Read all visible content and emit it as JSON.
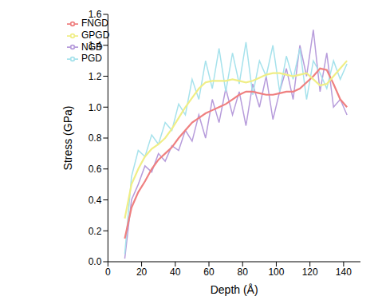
{
  "chart_data": {
    "type": "line",
    "x_label": "Depth (Å)",
    "y_label": "Stress (GPa)",
    "xlim": [
      0,
      150
    ],
    "xticks": [
      0,
      20,
      40,
      60,
      80,
      100,
      120,
      140
    ],
    "ylim": [
      0,
      1.6
    ],
    "yticks": [
      {
        "value": 0,
        "label": "0.0"
      },
      {
        "value": 0.2,
        "label": "0.2"
      },
      {
        "value": 0.4,
        "label": "0.4"
      },
      {
        "value": 0.6,
        "label": "0.6"
      },
      {
        "value": 0.8,
        "label": "0.8"
      },
      {
        "value": 1,
        "label": "1.0"
      },
      {
        "value": 1.2,
        "label": "1.2"
      },
      {
        "value": 1.4,
        "label": "1.4"
      },
      {
        "value": 1.6,
        "label": "1.6"
      }
    ],
    "legend": "upper left",
    "grid": false,
    "x": [
      10,
      14,
      18,
      22,
      26,
      30,
      34,
      38,
      42,
      46,
      50,
      54,
      58,
      62,
      66,
      70,
      74,
      78,
      82,
      86,
      90,
      94,
      98,
      102,
      106,
      110,
      114,
      118,
      122,
      126,
      130,
      134,
      138,
      142
    ],
    "series": [
      {
        "name": "NGD",
        "color": "#b79cdb",
        "values": [
          0.02,
          0.4,
          0.5,
          0.62,
          0.58,
          0.7,
          0.65,
          0.75,
          0.72,
          0.85,
          0.78,
          0.95,
          0.8,
          1.05,
          0.9,
          1.12,
          0.95,
          1.1,
          0.88,
          1.15,
          1.0,
          1.2,
          0.92,
          1.1,
          1.25,
          1.05,
          1.4,
          1.2,
          1.5,
          1.1,
          1.35,
          1.0,
          1.05,
          0.95
        ]
      },
      {
        "name": "PGD",
        "color": "#a6e2ec",
        "values": [
          0.05,
          0.55,
          0.72,
          0.68,
          0.82,
          0.76,
          0.9,
          0.85,
          1.02,
          0.95,
          1.18,
          1.05,
          1.3,
          1.12,
          1.38,
          1.1,
          1.35,
          1.15,
          1.42,
          1.08,
          1.3,
          1.2,
          1.4,
          1.1,
          1.33,
          1.18,
          1.38,
          1.05,
          1.3,
          1.22,
          1.12,
          1.3,
          1.18,
          1.28
        ]
      },
      {
        "name": "FNGD",
        "color": "#ef8080",
        "values": [
          0.15,
          0.35,
          0.45,
          0.52,
          0.6,
          0.66,
          0.7,
          0.74,
          0.8,
          0.85,
          0.9,
          0.93,
          0.96,
          0.98,
          1.0,
          1.02,
          1.05,
          1.08,
          1.1,
          1.1,
          1.09,
          1.08,
          1.08,
          1.09,
          1.1,
          1.1,
          1.12,
          1.16,
          1.2,
          1.25,
          1.24,
          1.15,
          1.05,
          1.0
        ]
      },
      {
        "name": "GPGD",
        "color": "#f0ee86",
        "values": [
          0.28,
          0.5,
          0.6,
          0.68,
          0.73,
          0.76,
          0.8,
          0.86,
          0.93,
          1.0,
          1.06,
          1.12,
          1.16,
          1.17,
          1.17,
          1.17,
          1.18,
          1.17,
          1.16,
          1.17,
          1.19,
          1.21,
          1.22,
          1.22,
          1.21,
          1.2,
          1.21,
          1.22,
          1.18,
          1.14,
          1.15,
          1.2,
          1.25,
          1.3
        ]
      }
    ]
  }
}
